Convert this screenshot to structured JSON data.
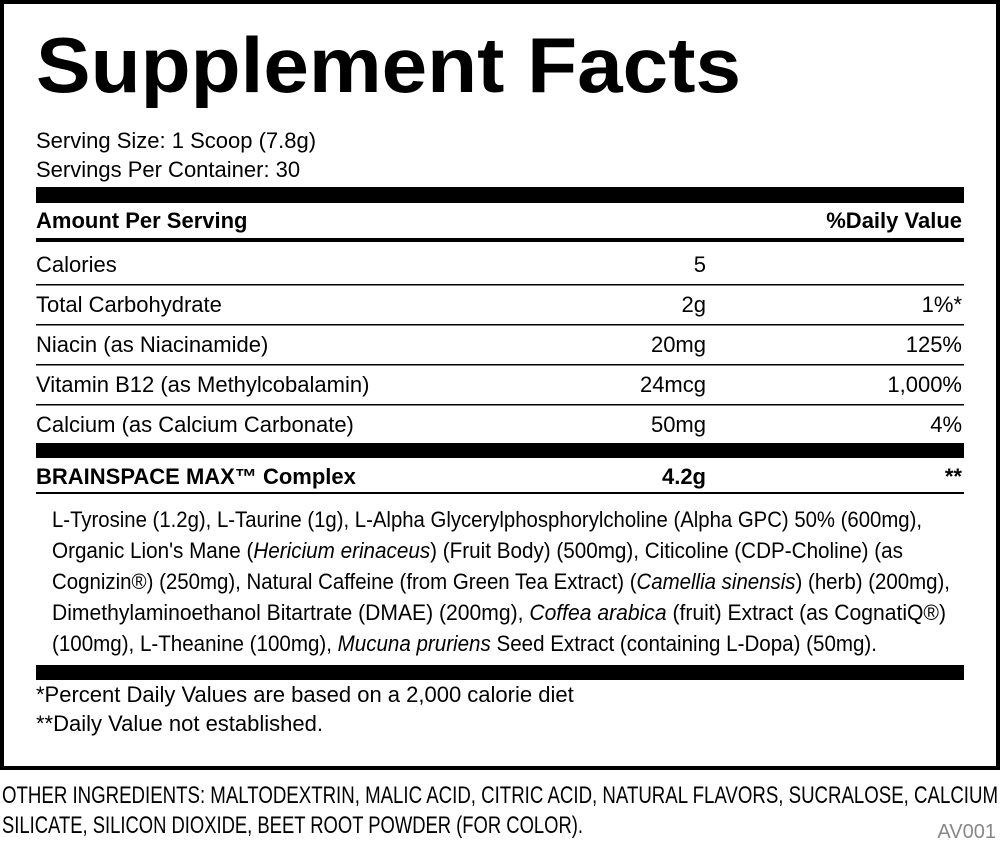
{
  "header": {
    "title": "Supplement Facts",
    "serving_size": "Serving Size: 1 Scoop (7.8g)",
    "servings_per_container": "Servings Per Container: 30"
  },
  "table": {
    "amount_header": "Amount Per Serving",
    "dv_header": "%Daily Value",
    "rows": [
      {
        "name": "Calories",
        "amount": "5"
      },
      {
        "name": "Total Carbohydrate",
        "amount": "2g",
        "daily_value": "1%*"
      },
      {
        "name": "Niacin (as Niacinamide)",
        "amount": "20mg",
        "daily_value": "125%"
      },
      {
        "name": "Vitamin B12 (as Methylcobalamin)",
        "amount": "24mcg",
        "daily_value": "1,000%"
      },
      {
        "name": "Calcium (as Calcium Carbonate)",
        "amount": "50mg",
        "daily_value": "4%"
      }
    ]
  },
  "complex": {
    "name": "BRAINSPACE MAX™ Complex",
    "amount": "4.2g",
    "daily_value": "**"
  },
  "ingredients": {
    "lines": [
      [
        {
          "text": "L-Tyrosine (1.2g), L-Taurine (1g), L-Alpha Glycerylphosphorylcholine (Alpha GPC) 50% (600mg),",
          "italic": false
        }
      ],
      [
        {
          "text": "Organic Lion's Mane (",
          "italic": false
        },
        {
          "text": "Hericium erinaceus",
          "italic": true
        },
        {
          "text": ") (Fruit Body) (500mg), Citicoline (CDP-Choline) (as",
          "italic": false
        }
      ],
      [
        {
          "text": "Cognizin®) (250mg), Natural Caffeine (from Green Tea Extract) (",
          "italic": false
        },
        {
          "text": "Camellia sinensis",
          "italic": true
        },
        {
          "text": ") (herb) (200mg),",
          "italic": false
        }
      ],
      [
        {
          "text": "Dimethylaminoethanol Bitartrate (DMAE) (200mg), ",
          "italic": false
        },
        {
          "text": "Coffea arabica",
          "italic": true
        },
        {
          "text": " (fruit) Extract (as CognatiQ®)",
          "italic": false
        }
      ],
      [
        {
          "text": "(100mg), L-Theanine (100mg), ",
          "italic": false
        },
        {
          "text": "Mucuna pruriens",
          "italic": true
        },
        {
          "text": " Seed Extract (containing L-Dopa) (50mg).",
          "italic": false
        }
      ]
    ]
  },
  "footnotes": [
    "*Percent Daily Values are based on a 2,000 calorie diet",
    "**Daily Value not established."
  ],
  "other_ingredients": [
    "OTHER INGREDIENTS: MALTODEXTRIN, MALIC ACID, CITRIC ACID, NATURAL FLAVORS, SUCRALOSE, CALCIUM",
    "SILICATE, SILICON DIOXIDE, BEET ROOT POWDER (FOR COLOR)."
  ],
  "code": "AV001"
}
